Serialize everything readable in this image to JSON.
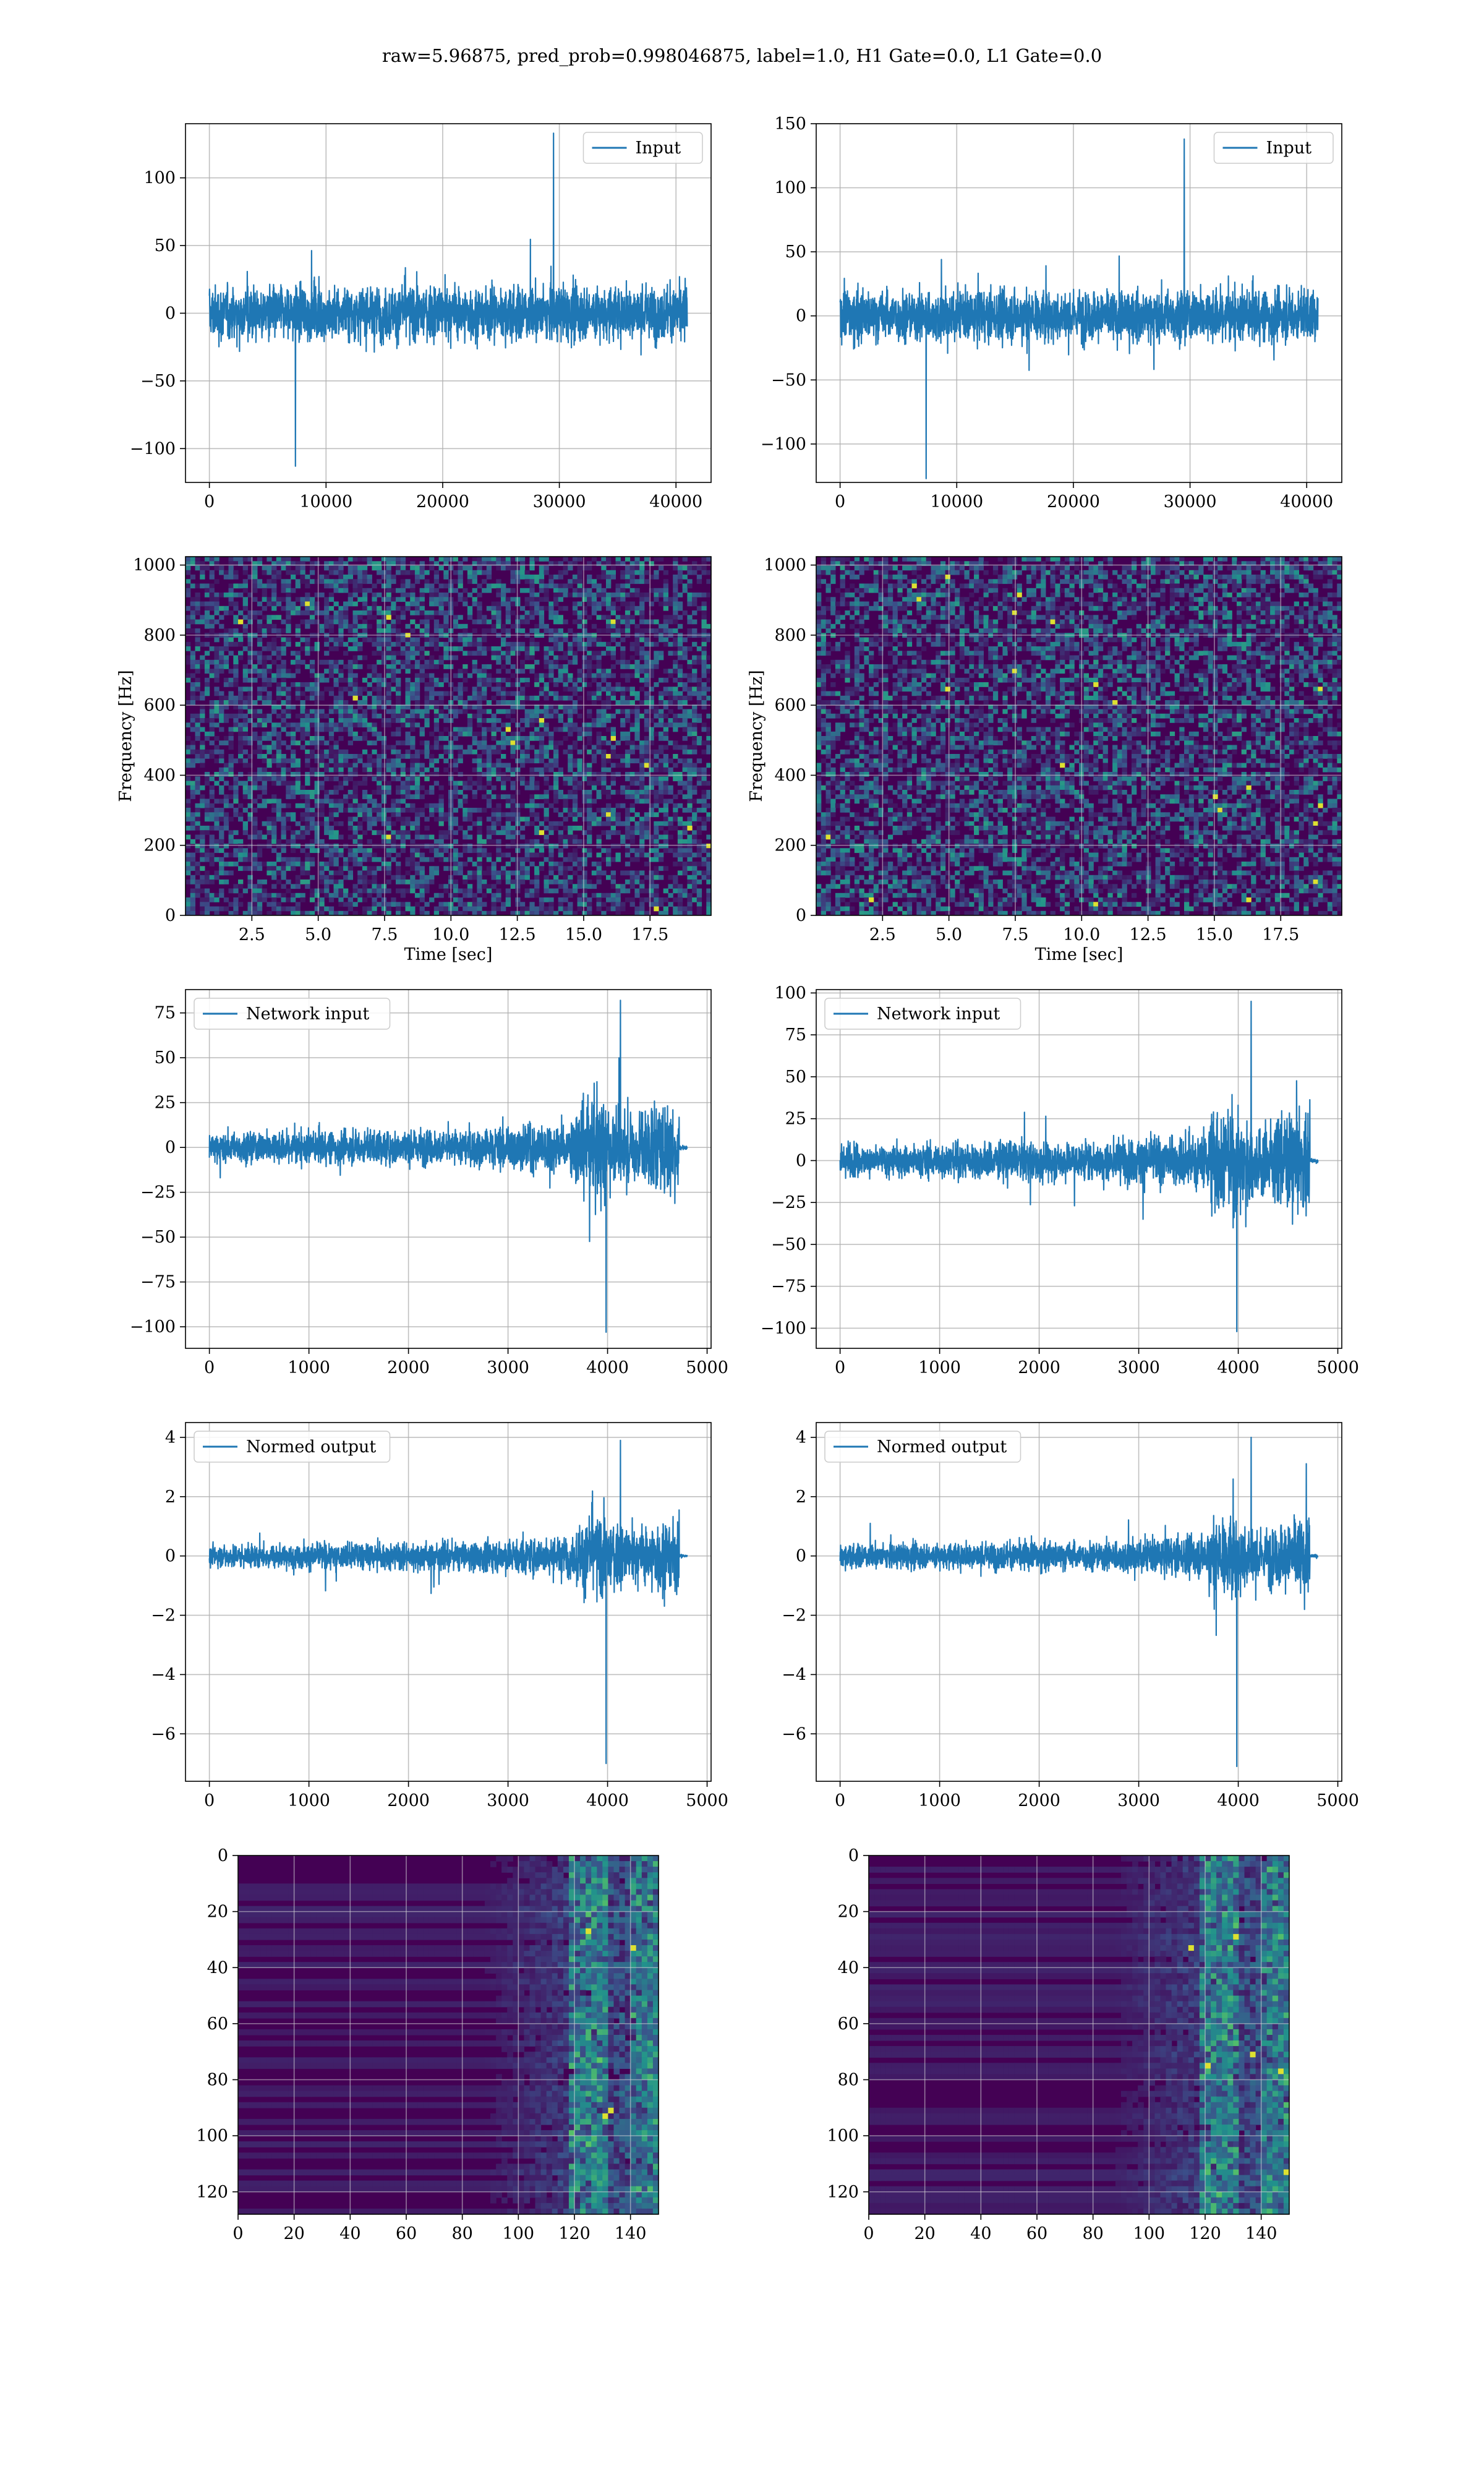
{
  "figure_title": "raw=5.96875, pred_prob=0.998046875, label=1.0, H1 Gate=0.0, L1 Gate=0.0",
  "colors": {
    "line": "#1f77b4",
    "grid": "#b0b0b0",
    "viridis_low": "#440154",
    "viridis_high": "#fde725"
  },
  "chart_data": [
    {
      "id": "input-h1",
      "type": "line",
      "legend": "Input",
      "legend_position": "upper right",
      "xlim": [
        -2048,
        43008
      ],
      "ylim": [
        -125,
        140
      ],
      "xticks": [
        0,
        10000,
        20000,
        30000,
        40000
      ],
      "yticks": [
        -100,
        -50,
        0,
        50,
        100
      ],
      "x_range": [
        0,
        40960
      ],
      "amplitude": 25,
      "peak_max": 133,
      "peak_min": -113,
      "grid": true
    },
    {
      "id": "input-l1",
      "type": "line",
      "legend": "Input",
      "legend_position": "upper right",
      "xlim": [
        -2048,
        43008
      ],
      "ylim": [
        -130,
        150
      ],
      "xticks": [
        0,
        10000,
        20000,
        30000,
        40000
      ],
      "yticks": [
        -100,
        -50,
        0,
        50,
        100,
        150
      ],
      "x_range": [
        0,
        40960
      ],
      "amplitude": 25,
      "peak_max": 138,
      "peak_min": -127,
      "grid": true
    },
    {
      "id": "spectrogram-h1",
      "type": "heatmap",
      "xlabel": "Time [sec]",
      "ylabel": "Frequency [Hz]",
      "xlim": [
        0,
        19.8
      ],
      "ylim": [
        0,
        1024
      ],
      "xticks": [
        2.5,
        5.0,
        7.5,
        10.0,
        12.5,
        15.0,
        17.5
      ],
      "xtick_labels": [
        "2.5",
        "5.0",
        "7.5",
        "10.0",
        "12.5",
        "15.0",
        "17.5"
      ],
      "yticks": [
        0,
        200,
        400,
        600,
        800,
        1000
      ],
      "colormap": "viridis",
      "grid": true
    },
    {
      "id": "spectrogram-l1",
      "type": "heatmap",
      "xlabel": "Time [sec]",
      "ylabel": "Frequency [Hz]",
      "xlim": [
        0,
        19.8
      ],
      "ylim": [
        0,
        1024
      ],
      "xticks": [
        2.5,
        5.0,
        7.5,
        10.0,
        12.5,
        15.0,
        17.5
      ],
      "xtick_labels": [
        "2.5",
        "5.0",
        "7.5",
        "10.0",
        "12.5",
        "15.0",
        "17.5"
      ],
      "yticks": [
        0,
        200,
        400,
        600,
        800,
        1000
      ],
      "colormap": "viridis",
      "grid": true
    },
    {
      "id": "network-input-h1",
      "type": "line",
      "legend": "Network input",
      "legend_position": "upper left",
      "xlim": [
        -240,
        5040
      ],
      "ylim": [
        -112,
        88
      ],
      "xticks": [
        0,
        1000,
        2000,
        3000,
        4000,
        5000
      ],
      "yticks": [
        -100,
        -75,
        -50,
        -25,
        0,
        25,
        50,
        75
      ],
      "x_range": [
        0,
        4800
      ],
      "signal_end": 4720,
      "peak_max": 82,
      "peak_min": -103,
      "grid": true
    },
    {
      "id": "network-input-l1",
      "type": "line",
      "legend": "Network input",
      "legend_position": "upper left",
      "xlim": [
        -240,
        5040
      ],
      "ylim": [
        -112,
        102
      ],
      "xticks": [
        0,
        1000,
        2000,
        3000,
        4000,
        5000
      ],
      "yticks": [
        -100,
        -75,
        -50,
        -25,
        0,
        25,
        50,
        75,
        100
      ],
      "x_range": [
        0,
        4800
      ],
      "signal_end": 4720,
      "peak_max": 95,
      "peak_min": -102,
      "grid": true
    },
    {
      "id": "normed-output-h1",
      "type": "line",
      "legend": "Normed output",
      "legend_position": "upper left",
      "xlim": [
        -240,
        5040
      ],
      "ylim": [
        -7.6,
        4.5
      ],
      "xticks": [
        0,
        1000,
        2000,
        3000,
        4000,
        5000
      ],
      "yticks": [
        -6,
        -4,
        -2,
        0,
        2,
        4
      ],
      "x_range": [
        0,
        4800
      ],
      "signal_end": 4720,
      "peak_max": 3.9,
      "peak_min": -7.0,
      "grid": true
    },
    {
      "id": "normed-output-l1",
      "type": "line",
      "legend": "Normed output",
      "legend_position": "upper left",
      "xlim": [
        -240,
        5040
      ],
      "ylim": [
        -7.6,
        4.5
      ],
      "xticks": [
        0,
        1000,
        2000,
        3000,
        4000,
        5000
      ],
      "yticks": [
        -6,
        -4,
        -2,
        0,
        2,
        4
      ],
      "x_range": [
        0,
        4800
      ],
      "signal_end": 4720,
      "peak_max": 4.0,
      "peak_min": -7.1,
      "grid": true
    },
    {
      "id": "feature-map-h1",
      "type": "heatmap",
      "colormap": "viridis",
      "xlim": [
        0,
        150
      ],
      "ylim": [
        128,
        0
      ],
      "xticks": [
        0,
        20,
        40,
        60,
        80,
        100,
        120,
        140
      ],
      "yticks": [
        0,
        20,
        40,
        60,
        80,
        100,
        120
      ],
      "grid": true
    },
    {
      "id": "feature-map-l1",
      "type": "heatmap",
      "colormap": "viridis",
      "xlim": [
        0,
        150
      ],
      "ylim": [
        128,
        0
      ],
      "xticks": [
        0,
        20,
        40,
        60,
        80,
        100,
        120,
        140
      ],
      "yticks": [
        0,
        20,
        40,
        60,
        80,
        100,
        120
      ],
      "grid": true
    }
  ]
}
